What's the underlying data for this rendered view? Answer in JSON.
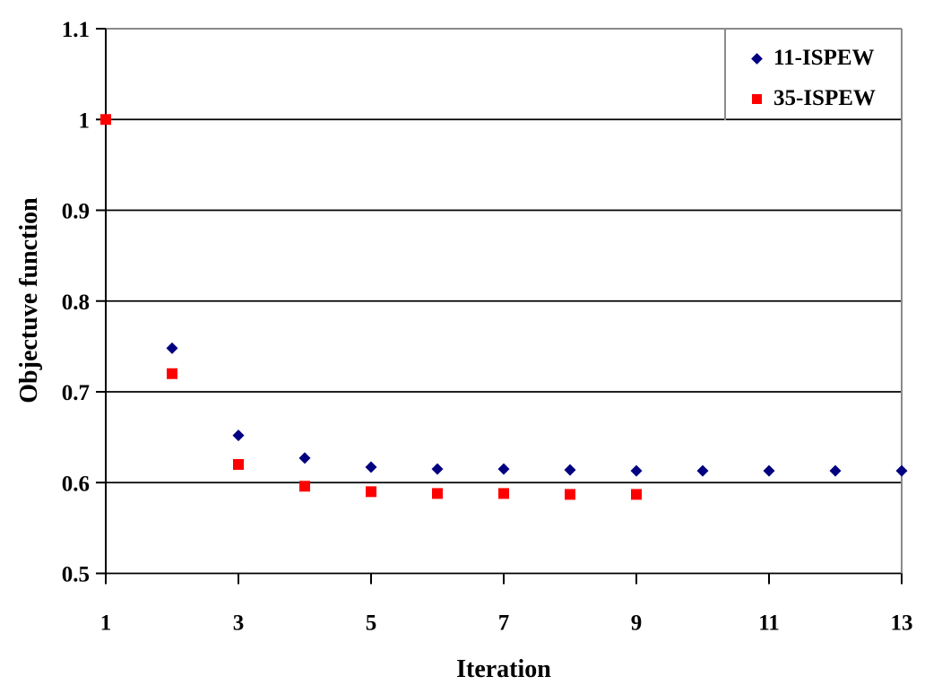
{
  "colors": {
    "background": "#FFFFFF",
    "gridline": "#000000",
    "axis": "#000000",
    "plot_border": "#8A8A8A",
    "series_blue": "#000080",
    "series_red": "#FF0000",
    "text": "#000000"
  },
  "chart_data": {
    "type": "scatter",
    "xlabel": "Iteration",
    "ylabel": "Objectuve function",
    "xlim": [
      1,
      13
    ],
    "ylim": [
      0.5,
      1.1
    ],
    "x_ticks": [
      1,
      3,
      5,
      7,
      9,
      11,
      13
    ],
    "y_ticks": [
      0.5,
      0.6,
      0.7,
      0.8,
      0.9,
      1,
      1.1
    ],
    "y_tick_labels": [
      "0.5",
      "0.6",
      "0.7",
      "0.8",
      "0.9",
      "1",
      "1.1"
    ],
    "grid": "horizontal-only",
    "legend_position": "top-right-inside",
    "series": [
      {
        "name": "11-ISPEW",
        "marker": "diamond",
        "color": "#000080",
        "x": [
          1,
          2,
          3,
          4,
          5,
          6,
          7,
          8,
          9,
          10,
          11,
          12,
          13
        ],
        "y": [
          1.0,
          0.748,
          0.652,
          0.627,
          0.617,
          0.615,
          0.615,
          0.614,
          0.613,
          0.613,
          0.613,
          0.613,
          0.613
        ]
      },
      {
        "name": "35-ISPEW",
        "marker": "square",
        "color": "#FF0000",
        "x": [
          1,
          2,
          3,
          4,
          5,
          6,
          7,
          8,
          9
        ],
        "y": [
          1.0,
          0.72,
          0.62,
          0.596,
          0.59,
          0.588,
          0.588,
          0.587,
          0.587
        ]
      }
    ]
  }
}
